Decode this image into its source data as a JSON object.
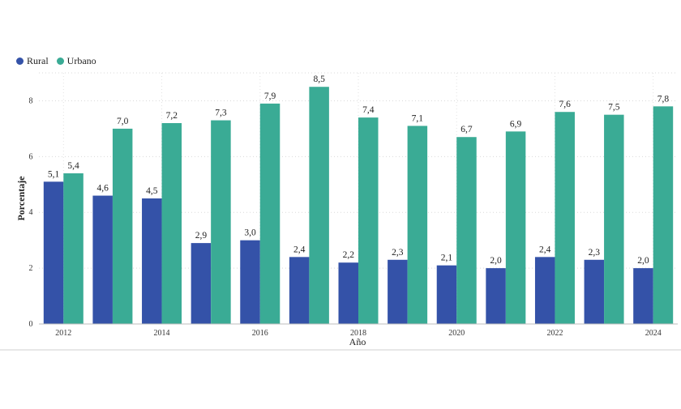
{
  "chart_data": {
    "type": "bar",
    "xlabel": "Año",
    "ylabel": "Porcentaje",
    "ylim": [
      0,
      9
    ],
    "yticks": [
      0,
      2,
      4,
      6,
      8
    ],
    "categories": [
      "2012",
      "2013",
      "2014",
      "2015",
      "2016",
      "2017",
      "2018",
      "2019",
      "2020",
      "2021",
      "2022",
      "2023",
      "2024"
    ],
    "xtick_labels": [
      "2012",
      "",
      "2014",
      "",
      "2016",
      "",
      "2018",
      "",
      "2020",
      "",
      "2022",
      "",
      "2024"
    ],
    "series": [
      {
        "name": "Rural",
        "color": "#3452a8",
        "values": [
          5.1,
          4.6,
          4.5,
          2.9,
          3.0,
          2.4,
          2.2,
          2.3,
          2.1,
          2.0,
          2.4,
          2.3,
          2.0
        ],
        "labels": [
          "5,1",
          "4,6",
          "4,5",
          "2,9",
          "3,0",
          "2,4",
          "2,2",
          "2,3",
          "2,1",
          "2,0",
          "2,4",
          "2,3",
          "2,0"
        ]
      },
      {
        "name": "Urbano",
        "color": "#3aab95",
        "values": [
          5.4,
          7.0,
          7.2,
          7.3,
          7.9,
          8.5,
          7.4,
          7.1,
          6.7,
          6.9,
          7.6,
          7.5,
          7.8
        ],
        "labels": [
          "5,4",
          "7,0",
          "7,2",
          "7,3",
          "7,9",
          "8,5",
          "7,4",
          "7,1",
          "6,7",
          "6,9",
          "7,6",
          "7,5",
          "7,8"
        ]
      }
    ],
    "grid": true,
    "legend_position": "top-left"
  }
}
